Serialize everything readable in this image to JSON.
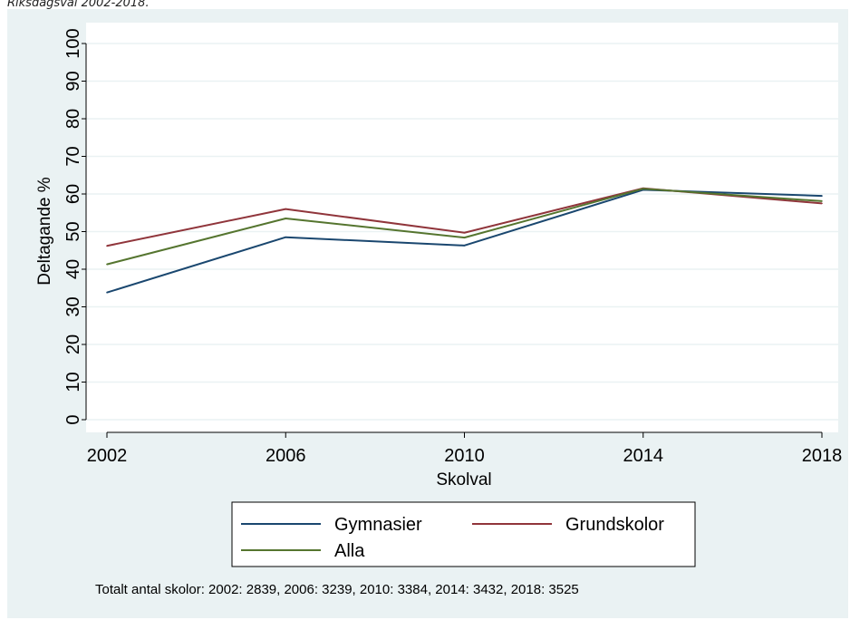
{
  "caption": "Riksdagsval 2002-2018.",
  "chart_data": {
    "type": "line",
    "x": [
      2002,
      2006,
      2010,
      2014,
      2018
    ],
    "series": [
      {
        "name": "Gymnasier",
        "color": "#1a476f",
        "values": [
          33.8,
          48.5,
          46.3,
          61.1,
          59.5
        ]
      },
      {
        "name": "Grundskolor",
        "color": "#90353b",
        "values": [
          46.2,
          56.0,
          49.7,
          61.5,
          57.5
        ]
      },
      {
        "name": "Alla",
        "color": "#55752f",
        "values": [
          41.3,
          53.5,
          48.4,
          61.4,
          58.1
        ]
      }
    ],
    "xlabel": "Skolval",
    "ylabel": "Deltagande %",
    "xticks": [
      "2002",
      "2006",
      "2010",
      "2014",
      "2018"
    ],
    "yticks": [
      "0",
      "10",
      "20",
      "30",
      "40",
      "50",
      "60",
      "70",
      "80",
      "90",
      "100"
    ],
    "ylim": [
      0,
      100
    ],
    "xlim": [
      2002,
      2018
    ],
    "grid": true,
    "legend_position": "bottom",
    "note": "Totalt antal skolor: 2002: 2839, 2006: 3239, 2010: 3384, 2014: 3432, 2018: 3525",
    "colors": {
      "outer_background": "#eaf2f3",
      "plot_background": "#ffffff",
      "grid": "#eaf2f3"
    }
  }
}
